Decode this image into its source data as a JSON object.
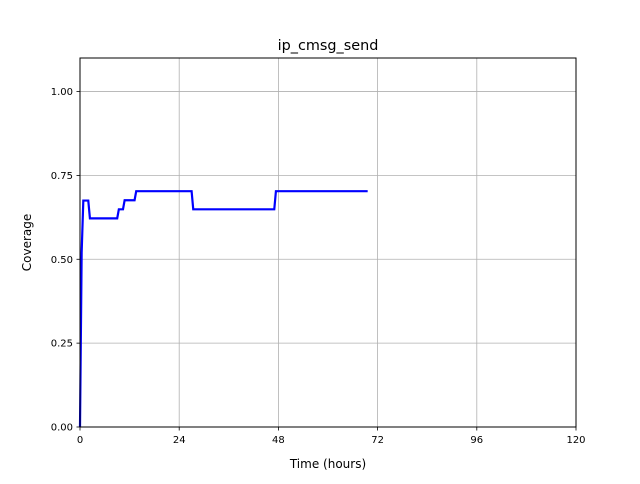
{
  "chart_data": {
    "type": "line",
    "title": "ip_cmsg_send",
    "xlabel": "Time (hours)",
    "ylabel": "Coverage",
    "xlim": [
      0,
      120
    ],
    "ylim": [
      0,
      1.1
    ],
    "xticks": [
      0,
      24,
      48,
      72,
      96,
      120
    ],
    "xtick_labels": [
      "0",
      "24",
      "48",
      "72",
      "96",
      "120"
    ],
    "yticks": [
      0,
      0.25,
      0.5,
      0.75,
      1.0
    ],
    "ytick_labels": [
      "0.00",
      "0.25",
      "0.50",
      "0.75",
      "1.00"
    ],
    "grid": true,
    "series": [
      {
        "color": "#0000ff",
        "points": [
          [
            0,
            0.0
          ],
          [
            0.4,
            0.52
          ],
          [
            0.8,
            0.675
          ],
          [
            2.0,
            0.675
          ],
          [
            2.4,
            0.622
          ],
          [
            9.0,
            0.622
          ],
          [
            9.4,
            0.649
          ],
          [
            10.4,
            0.649
          ],
          [
            10.8,
            0.676
          ],
          [
            13.2,
            0.676
          ],
          [
            13.6,
            0.703
          ],
          [
            27.0,
            0.703
          ],
          [
            27.4,
            0.649
          ],
          [
            47.0,
            0.649
          ],
          [
            47.4,
            0.703
          ],
          [
            69.6,
            0.703
          ]
        ]
      }
    ]
  }
}
